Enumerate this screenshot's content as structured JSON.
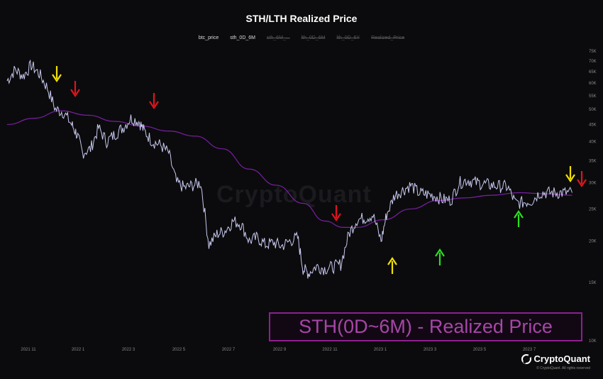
{
  "chart_data": {
    "type": "line",
    "title": "STH/LTH Realized Price",
    "legend": [
      {
        "label": "btc_price",
        "enabled": true,
        "color": "#c8c8f0"
      },
      {
        "label": "sth_0D_6M",
        "enabled": true,
        "color": "#7a1fa2"
      },
      {
        "label": "sth_6M_...",
        "enabled": false
      },
      {
        "label": "lth_0D_6M",
        "enabled": false
      },
      {
        "label": "lth_0D_6Y",
        "enabled": false
      },
      {
        "label": "Realized_Price",
        "enabled": false
      }
    ],
    "x_ticks": [
      "2021 11",
      "2022 1",
      "2022 3",
      "2022 5",
      "2022 7",
      "2022 9",
      "2022 11",
      "2023 1",
      "2023 3",
      "2023 5",
      "2023 7"
    ],
    "y_ticks": [
      "75K",
      "70K",
      "65K",
      "60K",
      "55K",
      "50K",
      "45K",
      "40K",
      "35K",
      "30K",
      "25K",
      "20K",
      "15K",
      "10K"
    ],
    "y_scale": "log",
    "ylim": [
      10000,
      75000
    ],
    "bottom_label": "10K",
    "x_range_months": [
      0,
      21
    ],
    "btc_price": {
      "t": [
        0,
        0.3,
        0.6,
        0.9,
        1.2,
        1.5,
        1.8,
        2.1,
        2.4,
        2.6,
        2.8,
        3.1,
        3.4,
        3.7,
        4.0,
        4.3,
        4.6,
        4.9,
        5.1,
        5.4,
        5.7,
        6.0,
        6.3,
        6.6,
        6.9,
        7.2,
        7.5,
        7.8,
        8.1,
        8.4,
        8.7,
        9.0,
        9.3,
        9.6,
        9.9,
        10.2,
        10.5,
        10.8,
        11.0,
        11.2,
        11.5,
        11.8,
        12.1,
        12.4,
        12.7,
        13.0,
        13.3,
        13.6,
        13.9,
        14.1,
        14.4,
        14.7,
        15.0,
        15.3,
        15.6,
        15.9,
        16.2,
        16.5,
        16.8,
        17.1,
        17.4,
        17.7,
        18.0,
        18.3,
        18.6,
        18.9,
        19.2,
        19.5,
        19.8,
        20.1,
        20.4,
        20.7,
        21.0
      ],
      "v": [
        61000,
        66000,
        63000,
        68000,
        64000,
        58000,
        50000,
        49000,
        45000,
        42000,
        37000,
        38000,
        44000,
        40000,
        42000,
        44000,
        47000,
        46000,
        43000,
        40000,
        39000,
        37000,
        30000,
        29000,
        29500,
        30000,
        19500,
        21000,
        21500,
        23000,
        22500,
        20000,
        20500,
        19500,
        19800,
        19300,
        20000,
        20500,
        16500,
        16000,
        16800,
        16500,
        16700,
        17000,
        21000,
        23200,
        23500,
        24000,
        20000,
        24000,
        27500,
        28500,
        29500,
        28000,
        27700,
        27400,
        26700,
        26600,
        30000,
        30600,
        30100,
        29800,
        29500,
        29300,
        29200,
        26000,
        26200,
        26500,
        28000,
        28000,
        28000,
        28000,
        28000
      ]
    },
    "sth_0D_6M": {
      "t": [
        0,
        1,
        2,
        3,
        4,
        5,
        6,
        7,
        8,
        9,
        10,
        11,
        11.8,
        12.5,
        13,
        14,
        15,
        16,
        17,
        18,
        19,
        20,
        21
      ],
      "v": [
        45000,
        47000,
        49500,
        48000,
        46000,
        44500,
        43000,
        41500,
        38000,
        33000,
        29500,
        26000,
        23000,
        22000,
        22000,
        23200,
        25000,
        26500,
        27000,
        27500,
        28000,
        27800,
        27500
      ]
    },
    "markers": [
      {
        "color": "yellow",
        "dir": "down",
        "t": 2.4
      },
      {
        "color": "red",
        "dir": "down",
        "t": 3.0
      },
      {
        "color": "red",
        "dir": "down",
        "t": 6.3
      },
      {
        "color": "red",
        "dir": "down",
        "t": 13.6
      },
      {
        "color": "yellow",
        "dir": "up",
        "t": 15.9
      },
      {
        "color": "green",
        "dir": "up",
        "t": 17.8
      },
      {
        "color": "green",
        "dir": "up",
        "t": 21.0
      },
      {
        "color": "yellow",
        "dir": "down",
        "t": 23.1
      },
      {
        "color": "red",
        "dir": "down",
        "t": 23.6
      }
    ]
  },
  "overlay_label": "STH(0D~6M) - Realized Price",
  "watermark": "CryptoQuant",
  "logo_text": "CryptoQuant",
  "copyright": "© CryptoQuant. All rights reserved"
}
